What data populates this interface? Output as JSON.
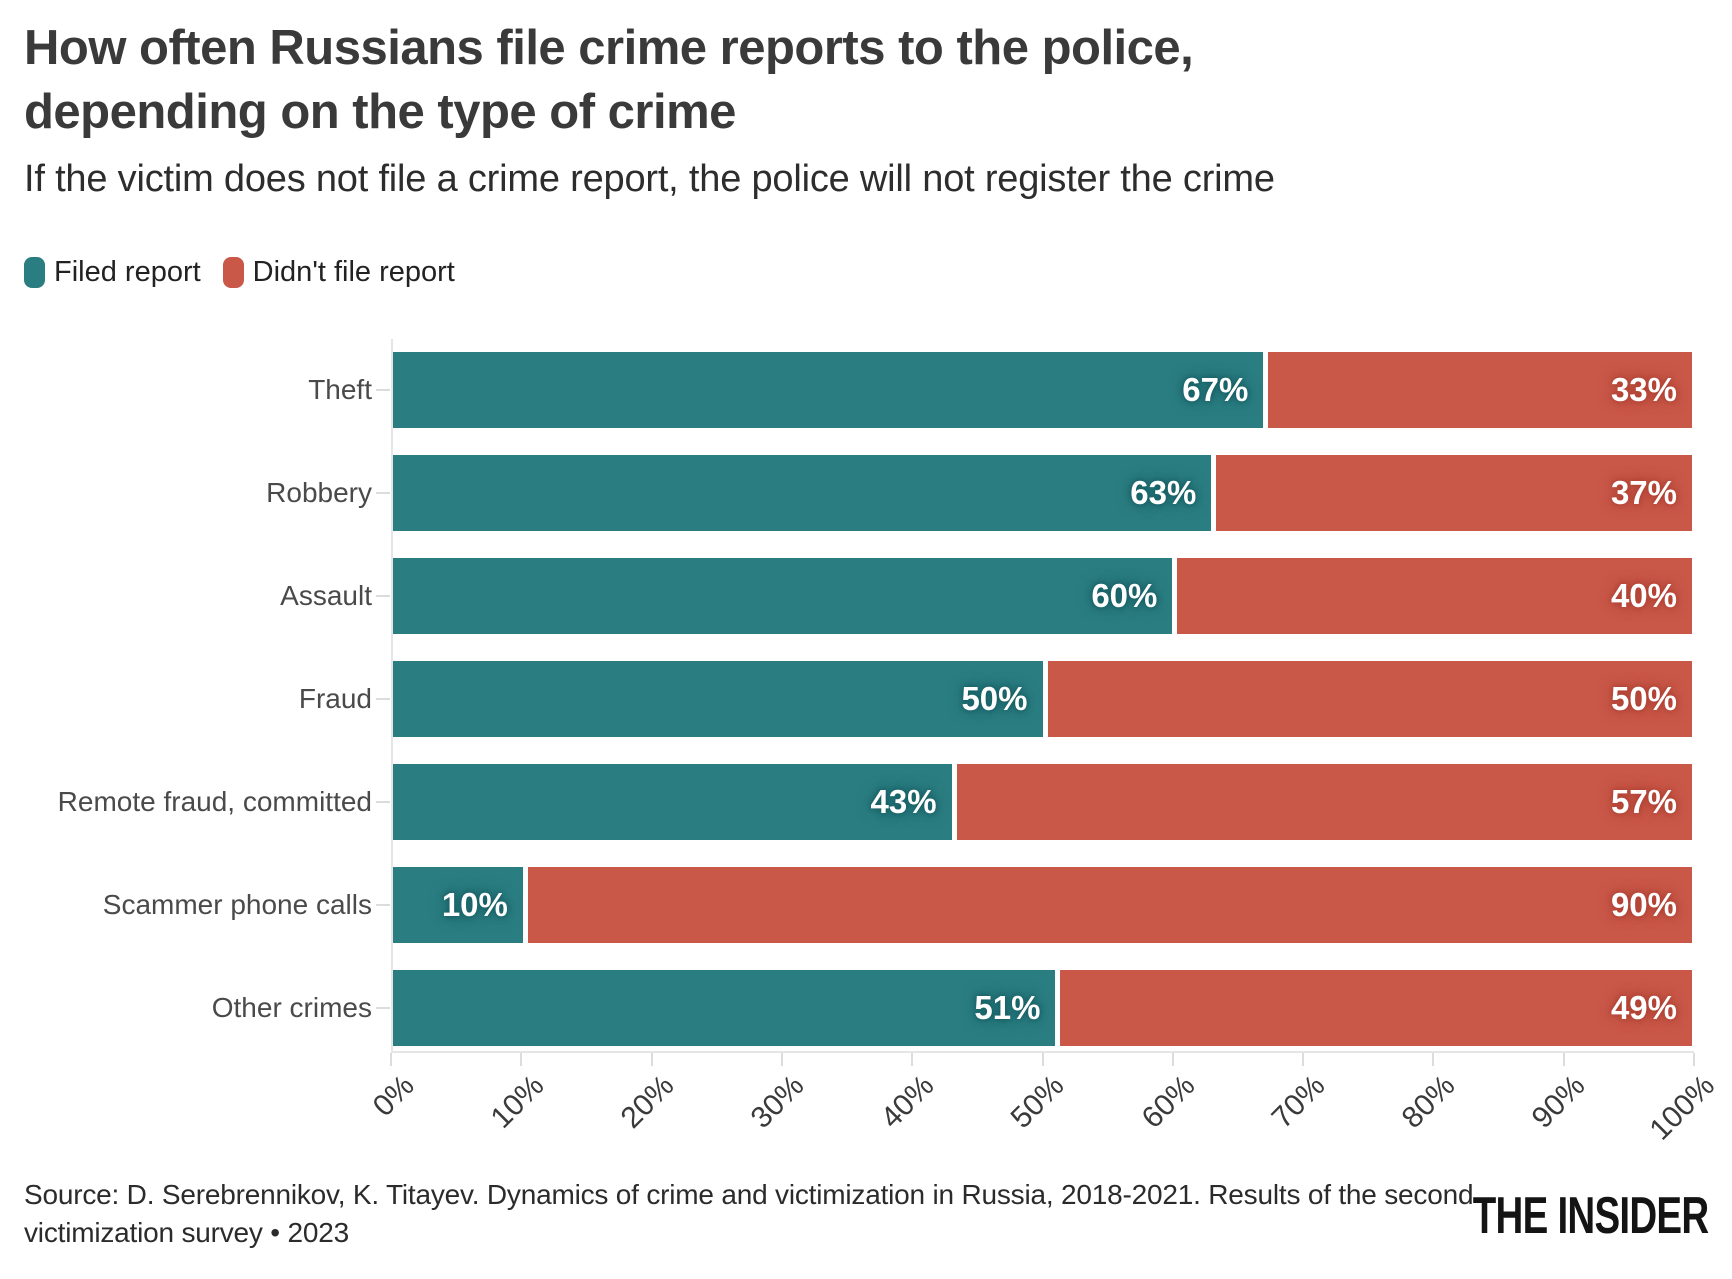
{
  "title": {
    "line1": "How often Russians file crime reports to the police,",
    "line2": "depending on the type of crime"
  },
  "subtitle": "If the victim does not file a crime report, the police will not register the crime",
  "legend": {
    "items": [
      {
        "label": "Filed report",
        "color": "#2a7d81"
      },
      {
        "label": "Didn't file report",
        "color": "#c95849"
      }
    ]
  },
  "chart_data": {
    "type": "bar",
    "orientation": "horizontal",
    "stacked": true,
    "categories": [
      "Theft",
      "Robbery",
      "Assault",
      "Fraud",
      "Remote fraud, committed",
      "Scammer phone calls",
      "Other crimes"
    ],
    "series": [
      {
        "name": "Filed report",
        "color": "#2a7d81",
        "values": [
          67,
          63,
          60,
          50,
          43,
          10,
          51
        ]
      },
      {
        "name": "Didn't file report",
        "color": "#c95849",
        "values": [
          33,
          37,
          40,
          50,
          57,
          90,
          49
        ]
      }
    ],
    "value_suffix": "%",
    "x_ticks": [
      "0%",
      "10%",
      "20%",
      "30%",
      "40%",
      "50%",
      "60%",
      "70%",
      "80%",
      "90%",
      "100%"
    ],
    "xlim": [
      0,
      100
    ],
    "grid": false,
    "legend_position": "top-left"
  },
  "source": "Source: D. Serebrennikov, K. Titayev. Dynamics of crime and victimization in Russia, 2018-2021. Results of the second victimization survey • 2023",
  "logo": "THE INSIDER"
}
